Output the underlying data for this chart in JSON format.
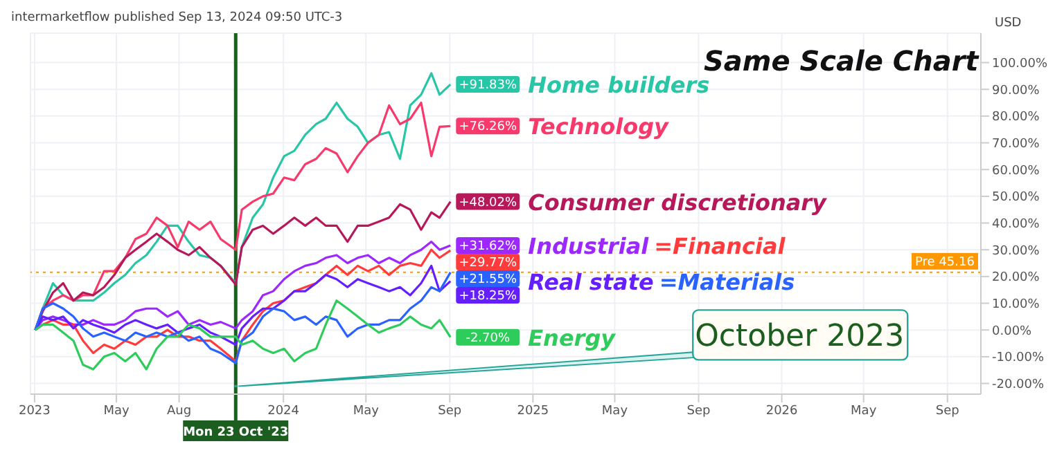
{
  "chart_data": {
    "type": "line",
    "title": "Same Scale Chart",
    "annotations": [
      "intermarketflow published Sep 13, 2024 09:50 UTC-3",
      "USD",
      {
        "text": "October 2023",
        "x": "2023-10-23",
        "y": -21
      }
    ],
    "x": [
      "2023-01-02",
      "2023-01-13",
      "2023-01-28",
      "2023-02-12",
      "2023-02-27",
      "2023-03-13",
      "2023-03-28",
      "2023-04-13",
      "2023-04-28",
      "2023-05-14",
      "2023-05-29",
      "2023-06-14",
      "2023-06-29",
      "2023-07-15",
      "2023-07-30",
      "2023-08-15",
      "2023-08-31",
      "2023-09-16",
      "2023-10-01",
      "2023-10-23",
      "2023-11-01",
      "2023-11-17",
      "2023-12-02",
      "2023-12-17",
      "2024-01-02",
      "2024-01-17",
      "2024-02-02",
      "2024-02-18",
      "2024-03-03",
      "2024-03-19",
      "2024-04-04",
      "2024-04-19",
      "2024-05-04",
      "2024-05-20",
      "2024-06-04",
      "2024-06-20",
      "2024-07-05",
      "2024-07-21",
      "2024-08-05",
      "2024-08-17",
      "2024-09-02"
    ],
    "series": [
      {
        "name": "Home builders",
        "color": "#26c6a6",
        "values": [
          0,
          8,
          17.5,
          13,
          11,
          11,
          11,
          14,
          17.5,
          20.6,
          25,
          28,
          33,
          39,
          39,
          33,
          28,
          27,
          24,
          17.5,
          31,
          42,
          47,
          57,
          65,
          67,
          73,
          77,
          79,
          85,
          79,
          76,
          70,
          73,
          74,
          64,
          84,
          88,
          96,
          88,
          91.83
        ],
        "value_labels": [
          null,
          null,
          null,
          null,
          null,
          null,
          null,
          null,
          null,
          null,
          null,
          null,
          null,
          null,
          null,
          null,
          null,
          null,
          null,
          null,
          null,
          null,
          null,
          null,
          null,
          null,
          null,
          null,
          null,
          null,
          null,
          null,
          null,
          null,
          null,
          null,
          null,
          null,
          null,
          null,
          "+91.83%"
        ]
      },
      {
        "name": "Technology",
        "color": "#f7396b",
        "values": [
          0,
          8,
          11,
          13,
          11,
          13,
          13,
          22,
          22,
          27,
          34,
          36,
          42,
          39,
          31,
          40.5,
          37.5,
          40.5,
          34,
          30,
          45,
          48,
          50,
          51,
          57,
          56,
          62,
          64,
          68,
          66,
          59,
          65,
          70,
          73,
          84,
          77,
          79,
          85,
          65,
          76,
          76.26
        ],
        "value_labels": [
          null,
          null,
          null,
          null,
          null,
          null,
          null,
          null,
          null,
          null,
          null,
          null,
          null,
          null,
          null,
          null,
          null,
          null,
          null,
          null,
          null,
          null,
          null,
          null,
          null,
          null,
          null,
          null,
          null,
          null,
          null,
          null,
          null,
          null,
          null,
          null,
          null,
          null,
          null,
          null,
          "+76.26%"
        ]
      },
      {
        "name": "Consumer discretionary",
        "color": "#b7185a",
        "values": [
          0,
          7,
          14,
          17.5,
          11,
          14,
          13,
          16,
          20.6,
          27,
          30,
          33,
          36,
          33,
          30,
          28,
          31,
          27,
          24,
          17,
          31,
          37.5,
          39,
          36,
          39,
          42,
          39,
          42,
          39,
          39,
          33,
          39,
          39,
          40.5,
          42,
          47,
          45,
          37.5,
          44,
          42,
          48.02
        ],
        "value_labels": [
          null,
          null,
          null,
          null,
          null,
          null,
          null,
          null,
          null,
          null,
          null,
          null,
          null,
          null,
          null,
          null,
          null,
          null,
          null,
          null,
          null,
          null,
          null,
          null,
          null,
          null,
          null,
          null,
          null,
          null,
          null,
          null,
          null,
          null,
          null,
          null,
          null,
          null,
          null,
          null,
          "+48.02%"
        ]
      },
      {
        "name": "Industrial",
        "color": "#9c27ff",
        "values": [
          0,
          3.7,
          5,
          3.7,
          2,
          2,
          3.7,
          2,
          2,
          3.7,
          7,
          8,
          8,
          5,
          7,
          2,
          3.7,
          2,
          3,
          0.6,
          3.7,
          7,
          13,
          14.5,
          19,
          22,
          24,
          25,
          27,
          28,
          25,
          27,
          28,
          25,
          27,
          25,
          28,
          30,
          33,
          30,
          31.62
        ],
        "value_labels": [
          null,
          null,
          null,
          null,
          null,
          null,
          null,
          null,
          null,
          null,
          null,
          null,
          null,
          null,
          null,
          null,
          null,
          null,
          null,
          null,
          null,
          null,
          null,
          null,
          null,
          null,
          null,
          null,
          null,
          null,
          null,
          null,
          null,
          null,
          null,
          null,
          null,
          null,
          null,
          null,
          "+31.62%"
        ]
      },
      {
        "name": "=Financial",
        "color": "#ff3b3b",
        "values": [
          0,
          2,
          3.7,
          2,
          2,
          -4,
          -8.6,
          -5.5,
          -7,
          -4,
          -5.5,
          -2.5,
          -2.5,
          0,
          -2.5,
          -2.5,
          -4,
          -4,
          -7,
          -11.7,
          -4,
          2,
          7,
          10,
          11,
          14.5,
          16,
          17.5,
          20.6,
          24,
          20.6,
          24,
          22,
          24,
          20.6,
          24,
          25,
          24,
          30,
          27,
          29.77
        ],
        "value_labels": [
          null,
          null,
          null,
          null,
          null,
          null,
          null,
          null,
          null,
          null,
          null,
          null,
          null,
          null,
          null,
          null,
          null,
          null,
          null,
          null,
          null,
          null,
          null,
          null,
          null,
          null,
          null,
          null,
          null,
          null,
          null,
          null,
          null,
          null,
          null,
          null,
          null,
          null,
          null,
          null,
          "+29.77%"
        ]
      },
      {
        "name": "Real state",
        "color": "#651fff",
        "values": [
          0,
          5,
          3.7,
          5,
          0.6,
          3.7,
          2,
          0.6,
          -1,
          2,
          3.7,
          2,
          0.6,
          2,
          -1,
          0.6,
          2,
          -1,
          -2.5,
          -5.5,
          0.6,
          5,
          8,
          8,
          11,
          14.5,
          14.5,
          17.5,
          20.6,
          19,
          16,
          19,
          17.5,
          16,
          14.5,
          16,
          13,
          17.5,
          24,
          14.5,
          18.25
        ],
        "value_labels": [
          null,
          null,
          null,
          null,
          null,
          null,
          null,
          null,
          null,
          null,
          null,
          null,
          null,
          null,
          null,
          null,
          null,
          null,
          null,
          null,
          null,
          null,
          null,
          null,
          null,
          null,
          null,
          null,
          null,
          null,
          null,
          null,
          null,
          null,
          null,
          null,
          null,
          null,
          null,
          null,
          "+18.25%"
        ]
      },
      {
        "name": "=Materials",
        "color": "#2962ff",
        "values": [
          0,
          8,
          10,
          8,
          5,
          0.6,
          -2.5,
          -1,
          -2.5,
          -4,
          -1,
          -2.5,
          -1,
          -2.5,
          -1,
          -4,
          -2.5,
          -7,
          -8.6,
          -12.4,
          -4,
          -1,
          5,
          8,
          7,
          3.7,
          5,
          2,
          5,
          3.7,
          -2.5,
          0.6,
          2,
          2,
          3.7,
          3.7,
          8,
          11,
          16,
          14.5,
          21.55
        ],
        "value_labels": [
          null,
          null,
          null,
          null,
          null,
          null,
          null,
          null,
          null,
          null,
          null,
          null,
          null,
          null,
          null,
          null,
          null,
          null,
          null,
          null,
          null,
          null,
          null,
          null,
          null,
          null,
          null,
          null,
          null,
          null,
          null,
          null,
          null,
          null,
          null,
          null,
          null,
          null,
          null,
          null,
          "+21.55%"
        ]
      },
      {
        "name": "Energy",
        "color": "#2ecc5a",
        "values": [
          0,
          2,
          2,
          -1,
          -4,
          -13,
          -14.7,
          -10,
          -8.6,
          -11.7,
          -8.6,
          -14.7,
          -7,
          -2.5,
          -2.5,
          2,
          0.6,
          -2.5,
          -2.5,
          -2.5,
          -5.5,
          -4,
          -7,
          -8.6,
          -7,
          -11.7,
          -8.6,
          -7,
          2,
          11,
          8,
          5,
          2,
          -1,
          0.6,
          2,
          5,
          2,
          0.6,
          3.7,
          -2.7
        ],
        "value_labels": [
          null,
          null,
          null,
          null,
          null,
          null,
          null,
          null,
          null,
          null,
          null,
          null,
          null,
          null,
          null,
          null,
          null,
          null,
          null,
          null,
          null,
          null,
          null,
          null,
          null,
          null,
          null,
          null,
          null,
          null,
          null,
          null,
          null,
          null,
          null,
          null,
          null,
          null,
          null,
          null,
          "-2.70%"
        ]
      }
    ],
    "xlim": [
      "2022-12-26",
      "2026-10-20"
    ],
    "xticks": [
      {
        "value": "2023-01-01",
        "label": "2023"
      },
      {
        "value": "2023-05-01",
        "label": "May"
      },
      {
        "value": "2023-08-01",
        "label": "Aug"
      },
      {
        "value": "2024-01-01",
        "label": "2024"
      },
      {
        "value": "2024-05-01",
        "label": "May"
      },
      {
        "value": "2024-09-01",
        "label": "Sep"
      },
      {
        "value": "2025-01-01",
        "label": "2025"
      },
      {
        "value": "2025-05-01",
        "label": "May"
      },
      {
        "value": "2025-09-01",
        "label": "Sep"
      },
      {
        "value": "2026-01-01",
        "label": "2026"
      },
      {
        "value": "2026-05-01",
        "label": "May"
      },
      {
        "value": "2026-09-01",
        "label": "Sep"
      }
    ],
    "ylim": [
      -24,
      111
    ],
    "yticks": [
      {
        "value": -20,
        "label": "-20.00%"
      },
      {
        "value": -10,
        "label": "-10.00%"
      },
      {
        "value": 0,
        "label": "0.00%"
      },
      {
        "value": 10,
        "label": "10.00%"
      },
      {
        "value": 20,
        "label": "20.00%"
      },
      {
        "value": 30,
        "label": "30.00%"
      },
      {
        "value": 40,
        "label": "40.00%"
      },
      {
        "value": 50,
        "label": "50.00%"
      },
      {
        "value": 60,
        "label": "60.00%"
      },
      {
        "value": 70,
        "label": "70.00%"
      },
      {
        "value": 80,
        "label": "80.00%"
      },
      {
        "value": 90,
        "label": "90.00%"
      },
      {
        "value": 100,
        "label": "100.00%"
      }
    ],
    "ref_lines": [
      {
        "axis": "x",
        "value": "2023-10-23",
        "label": "Mon 23 Oct '23",
        "color": "#1b5e20",
        "line_style": "solid"
      },
      {
        "axis": "y",
        "value": 21.55,
        "label": "Pre 45.16",
        "color": "#ff9800",
        "line_style": "dotted"
      }
    ],
    "grid": true,
    "legend": "right"
  }
}
